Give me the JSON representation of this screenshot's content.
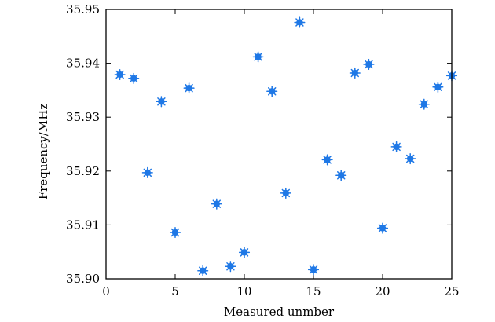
{
  "chart_data": {
    "type": "scatter",
    "title": "",
    "xlabel": "Measured unmber",
    "ylabel": "Frequency/MHz",
    "xlim": [
      0,
      25
    ],
    "ylim": [
      35.9,
      35.95
    ],
    "x_ticks": [
      0,
      5,
      10,
      15,
      20,
      25
    ],
    "x_tick_labels": [
      "0",
      "5",
      "10",
      "15",
      "20",
      "25"
    ],
    "y_ticks": [
      35.9,
      35.91,
      35.92,
      35.93,
      35.94,
      35.95
    ],
    "y_tick_labels": [
      "35.90",
      "35.91",
      "35.92",
      "35.93",
      "35.94",
      "35.95"
    ],
    "grid": false,
    "marker_color": "#1f78e6",
    "x": [
      1,
      2,
      3,
      4,
      5,
      6,
      7,
      8,
      9,
      10,
      11,
      12,
      13,
      14,
      15,
      16,
      17,
      18,
      19,
      20,
      21,
      22,
      23,
      24,
      25
    ],
    "y": [
      35.9379,
      35.9372,
      35.9197,
      35.9329,
      35.9086,
      35.9354,
      35.9015,
      35.9139,
      35.9023,
      35.9049,
      35.9412,
      35.9348,
      35.9159,
      35.9476,
      35.9017,
      35.9221,
      35.9192,
      35.9382,
      35.9398,
      35.9094,
      35.9245,
      35.9223,
      35.9324,
      35.9356,
      35.9377
    ]
  }
}
